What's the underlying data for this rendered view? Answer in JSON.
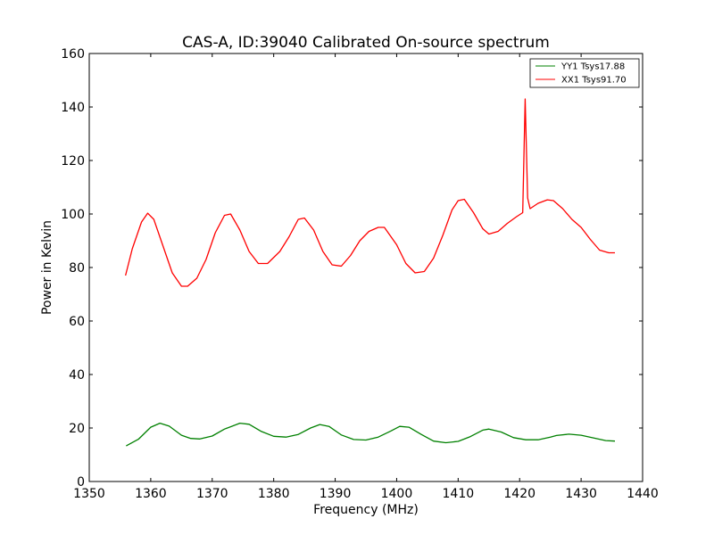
{
  "chart_data": {
    "type": "line",
    "title": "CAS-A, ID:39040 Calibrated On-source spectrum",
    "xlabel": "Frequency (MHz)",
    "ylabel": "Power in Kelvin",
    "xlim": [
      1350,
      1440
    ],
    "ylim": [
      0,
      160
    ],
    "xticks": [
      "1350",
      "1360",
      "1370",
      "1380",
      "1390",
      "1400",
      "1410",
      "1420",
      "1430",
      "1440"
    ],
    "yticks": [
      "0",
      "20",
      "40",
      "60",
      "80",
      "100",
      "120",
      "140",
      "160"
    ],
    "grid": false,
    "legend_position": "top-right",
    "series": [
      {
        "name": "YY1 Tsys17.88",
        "color": "#008000",
        "points": [
          [
            1356,
            13.3
          ],
          [
            1358,
            15.8
          ],
          [
            1360,
            20.3
          ],
          [
            1361.5,
            21.8
          ],
          [
            1363,
            20.7
          ],
          [
            1365,
            17.3
          ],
          [
            1366.5,
            16.1
          ],
          [
            1368,
            15.9
          ],
          [
            1370,
            17.0
          ],
          [
            1372,
            19.6
          ],
          [
            1374.5,
            21.8
          ],
          [
            1376,
            21.4
          ],
          [
            1378,
            18.7
          ],
          [
            1380,
            16.9
          ],
          [
            1382,
            16.6
          ],
          [
            1384,
            17.6
          ],
          [
            1386,
            20.0
          ],
          [
            1387.5,
            21.3
          ],
          [
            1389,
            20.6
          ],
          [
            1391,
            17.4
          ],
          [
            1393,
            15.7
          ],
          [
            1395,
            15.5
          ],
          [
            1397,
            16.6
          ],
          [
            1399,
            18.8
          ],
          [
            1400.5,
            20.6
          ],
          [
            1402,
            20.3
          ],
          [
            1404,
            17.6
          ],
          [
            1406,
            15.1
          ],
          [
            1408,
            14.5
          ],
          [
            1410,
            15.0
          ],
          [
            1412,
            16.8
          ],
          [
            1414,
            19.2
          ],
          [
            1415,
            19.6
          ],
          [
            1417,
            18.5
          ],
          [
            1419,
            16.4
          ],
          [
            1421,
            15.6
          ],
          [
            1423,
            15.6
          ],
          [
            1425,
            16.6
          ],
          [
            1426,
            17.2
          ],
          [
            1428,
            17.7
          ],
          [
            1430,
            17.3
          ],
          [
            1432,
            16.3
          ],
          [
            1434,
            15.3
          ],
          [
            1435.5,
            15.1
          ]
        ]
      },
      {
        "name": "XX1 Tsys91.70",
        "color": "#ff0000",
        "points": [
          [
            1355.9,
            77.0
          ],
          [
            1357,
            87.0
          ],
          [
            1358.5,
            97.0
          ],
          [
            1359.5,
            100.3
          ],
          [
            1360.5,
            98.0
          ],
          [
            1362,
            88.0
          ],
          [
            1363.5,
            78.0
          ],
          [
            1365,
            73.0
          ],
          [
            1366,
            73.0
          ],
          [
            1367.5,
            76.0
          ],
          [
            1369,
            83.0
          ],
          [
            1370.5,
            93.0
          ],
          [
            1372,
            99.5
          ],
          [
            1373,
            100.0
          ],
          [
            1374.5,
            94.0
          ],
          [
            1376,
            86.0
          ],
          [
            1377.5,
            81.5
          ],
          [
            1379,
            81.5
          ],
          [
            1381,
            86.0
          ],
          [
            1382.5,
            91.5
          ],
          [
            1384,
            98.0
          ],
          [
            1385,
            98.5
          ],
          [
            1386.5,
            94.0
          ],
          [
            1388,
            86.0
          ],
          [
            1389.5,
            81.0
          ],
          [
            1391,
            80.5
          ],
          [
            1392.5,
            84.5
          ],
          [
            1394,
            90.0
          ],
          [
            1395.5,
            93.5
          ],
          [
            1397,
            95.0
          ],
          [
            1398,
            95.0
          ],
          [
            1400,
            88.5
          ],
          [
            1401.5,
            81.5
          ],
          [
            1403,
            78.0
          ],
          [
            1404.5,
            78.5
          ],
          [
            1406,
            83.5
          ],
          [
            1407.5,
            92.0
          ],
          [
            1409,
            101.5
          ],
          [
            1410,
            105.0
          ],
          [
            1411,
            105.5
          ],
          [
            1412.5,
            100.5
          ],
          [
            1414,
            94.5
          ],
          [
            1415,
            92.5
          ],
          [
            1416.5,
            93.5
          ],
          [
            1418,
            96.5
          ],
          [
            1419.5,
            99.0
          ],
          [
            1420.5,
            100.5
          ],
          [
            1420.9,
            143.0
          ],
          [
            1421.3,
            106.0
          ],
          [
            1421.7,
            102.0
          ],
          [
            1423,
            104.0
          ],
          [
            1424.5,
            105.3
          ],
          [
            1425.5,
            105.0
          ],
          [
            1427,
            102.0
          ],
          [
            1428.5,
            98.0
          ],
          [
            1430,
            95.0
          ],
          [
            1431.5,
            90.5
          ],
          [
            1433,
            86.5
          ],
          [
            1434.5,
            85.5
          ],
          [
            1435.5,
            85.5
          ]
        ]
      }
    ]
  }
}
